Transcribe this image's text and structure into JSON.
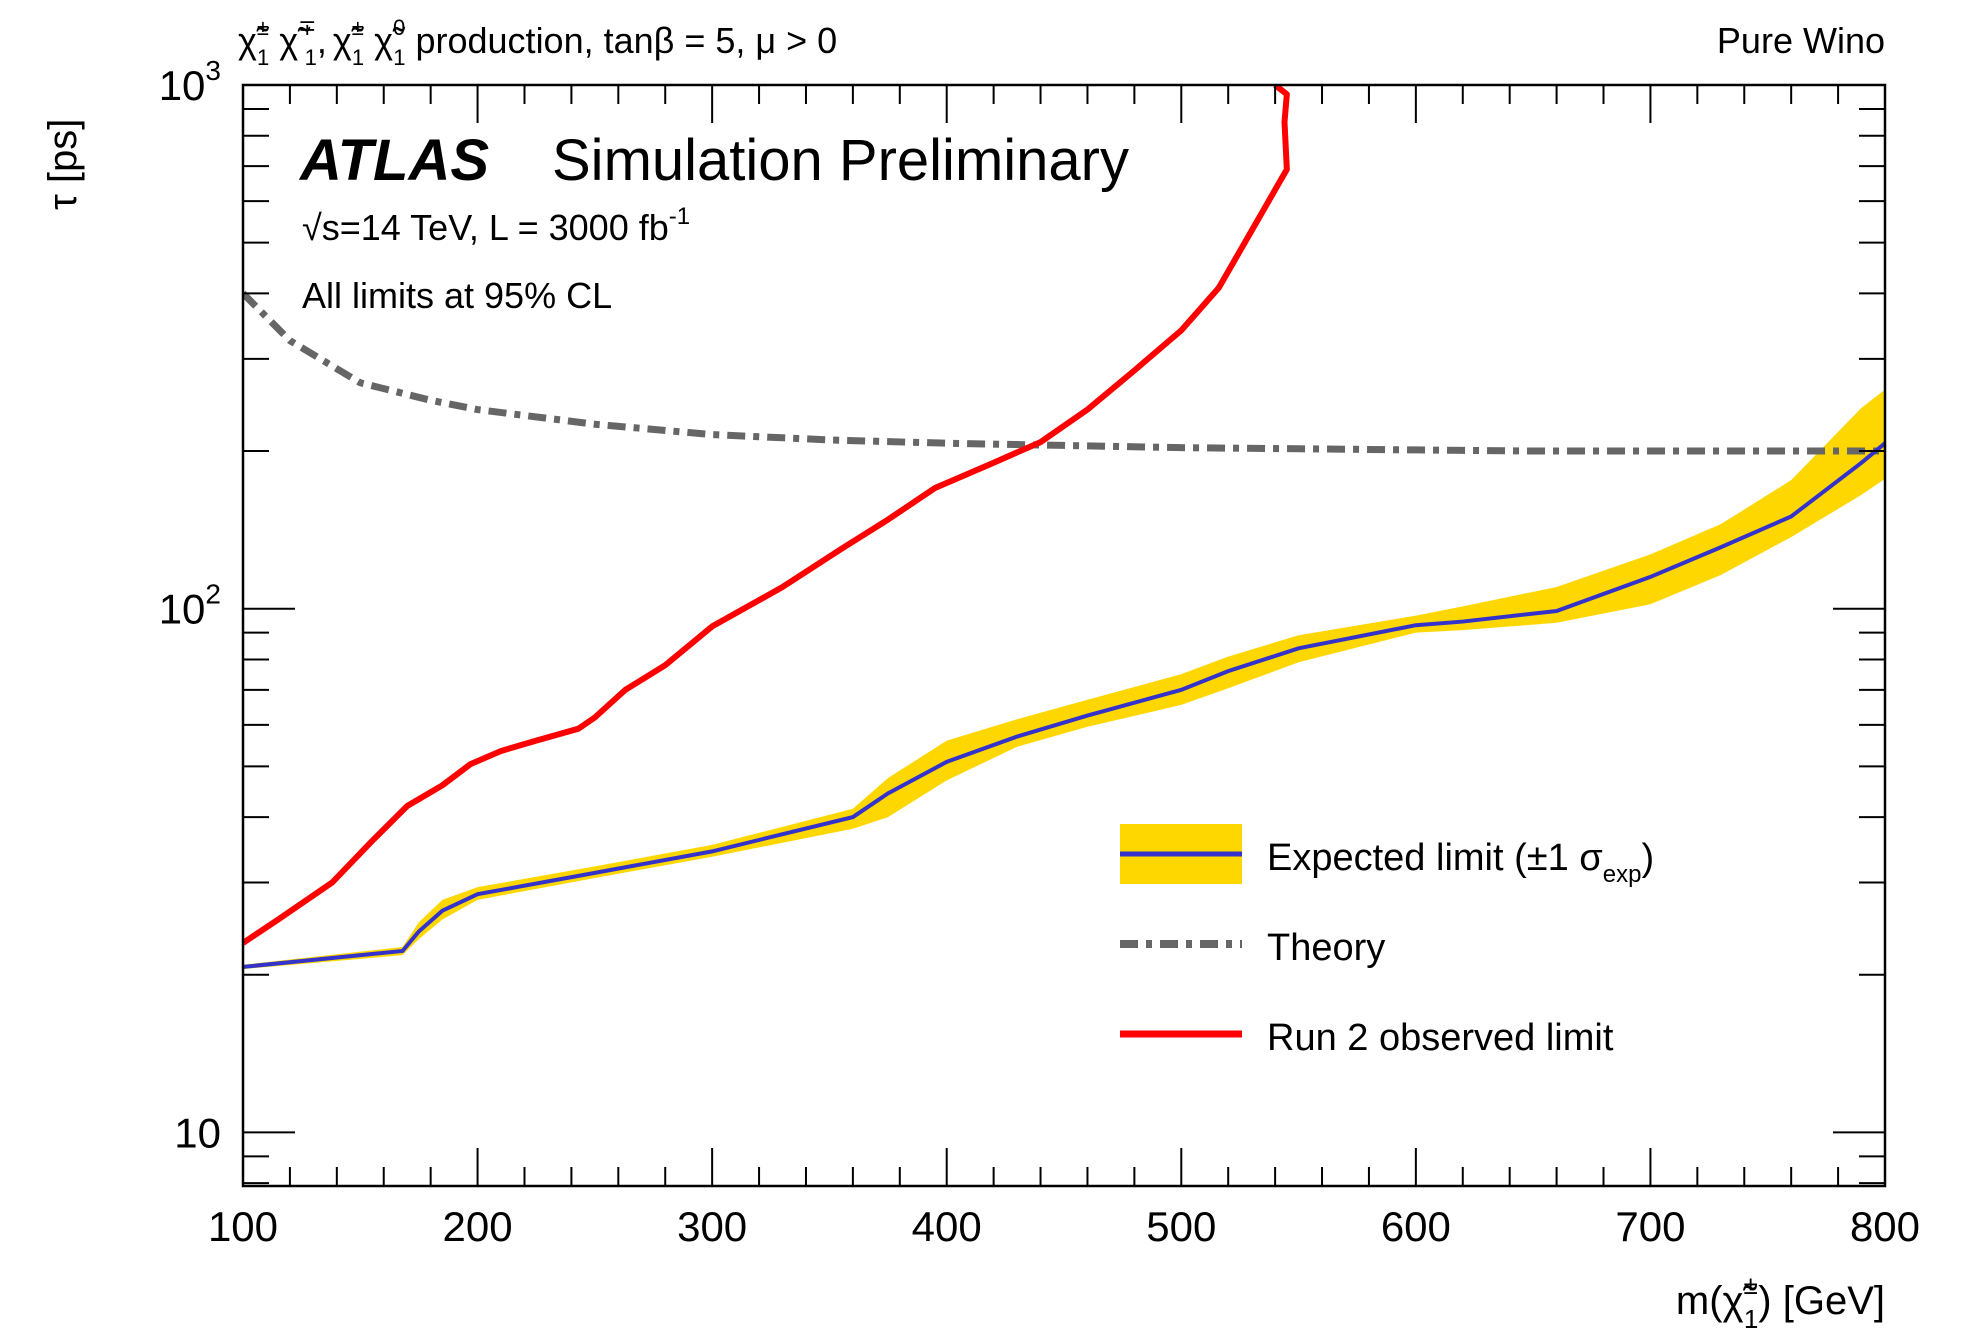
{
  "header": {
    "process_line": "χ̃±1 χ̃∓1, χ̃±1 χ̃01 production, tanβ = 5, μ > 0",
    "process_chi": "χ̃",
    "process_sup_pm": "±",
    "process_sup_mp": "∓",
    "process_sup_0": "0",
    "process_sub_1": "1",
    "process_rest": " production, tanβ = 5, μ > 0",
    "scenario": "Pure Wino"
  },
  "labels": {
    "atlas": "ATLAS",
    "simulation": "Simulation Preliminary",
    "energy_line": "√s=14 TeV, L = 3000 fb-1",
    "energy_sqrt": "√",
    "energy_s": "s=14 TeV, L = 3000 fb",
    "energy_exp": "-1",
    "cl_note": "All limits at 95% CL"
  },
  "chart_data": {
    "type": "line",
    "xlabel": "m(χ̃±1) [GeV]",
    "xlabel_parts": {
      "pre": "m(",
      "chi": "χ̃",
      "sup": "±",
      "sub": "1",
      "post": ") [GeV]"
    },
    "ylabel": "τ [ps]",
    "xlim": [
      100,
      800
    ],
    "ylim": [
      7.9,
      1000
    ],
    "yscale": "log",
    "x_ticks": [
      100,
      200,
      300,
      400,
      500,
      600,
      700,
      800
    ],
    "y_ticks": [
      {
        "value": 10,
        "label": "10",
        "sup": ""
      },
      {
        "value": 100,
        "label": "10",
        "sup": "2"
      },
      {
        "value": 1000,
        "label": "10",
        "sup": "3"
      }
    ],
    "grid": false,
    "legend_placement": "bottom-right",
    "series": [
      {
        "name": "Expected limit (±1 σexp)",
        "legend_text": "Expected limit (±1 σ",
        "legend_sub": "exp",
        "legend_close": ")",
        "style": "solid-with-band",
        "color": "#3333cc",
        "band_color": "#ffd700",
        "x": [
          100,
          168,
          175,
          185,
          200,
          250,
          300,
          360,
          375,
          400,
          430,
          460,
          500,
          520,
          550,
          600,
          620,
          660,
          700,
          730,
          760,
          790,
          800
        ],
        "values": [
          20.7,
          22.2,
          24.2,
          26.5,
          28.5,
          31.3,
          34.4,
          40.0,
          44.4,
          51.0,
          57.0,
          62.5,
          70.0,
          76.0,
          84.0,
          93.0,
          94.5,
          99.0,
          115,
          131,
          150,
          190,
          207
        ],
        "band_lower": [
          20.5,
          21.8,
          23.4,
          25.5,
          27.8,
          30.6,
          33.6,
          38.0,
          40.0,
          47.0,
          54.5,
          59.5,
          65.5,
          70.5,
          79.0,
          90.0,
          91.0,
          94.0,
          102,
          116,
          137,
          165,
          177
        ],
        "band_upper": [
          20.9,
          22.6,
          25.2,
          27.8,
          29.4,
          32.2,
          35.4,
          41.5,
          47.5,
          56.0,
          61.5,
          67.0,
          75.0,
          81.0,
          89.0,
          97.0,
          101,
          110,
          127,
          145,
          176,
          242,
          262
        ]
      },
      {
        "name": "Theory",
        "legend_text": "Theory",
        "style": "dash-dot",
        "color": "#666666",
        "x": [
          100,
          120,
          150,
          180,
          200,
          250,
          300,
          350,
          400,
          450,
          500,
          550,
          600,
          650,
          700,
          750,
          800
        ],
        "values": [
          400,
          325,
          270,
          250,
          240,
          225,
          215,
          210,
          207,
          205,
          203,
          202,
          201,
          200,
          200,
          200,
          200
        ]
      },
      {
        "name": "Run 2 observed limit",
        "legend_text": "Run 2 observed limit",
        "style": "solid",
        "color": "#ff0000",
        "x": [
          100,
          115,
          138,
          155,
          170,
          185,
          197,
          210,
          225,
          243,
          250,
          263,
          280,
          300,
          330,
          355,
          375,
          395,
          420,
          440,
          460,
          480,
          500,
          516,
          545,
          544,
          545,
          540
        ],
        "values": [
          23.0,
          25.5,
          30.0,
          36.0,
          42.0,
          46.0,
          50.5,
          53.5,
          56.0,
          59.0,
          62.0,
          70.0,
          78.0,
          92.5,
          110,
          130,
          148,
          170,
          190,
          208,
          240,
          285,
          340,
          410,
          690,
          850,
          960,
          1000
        ]
      }
    ]
  }
}
